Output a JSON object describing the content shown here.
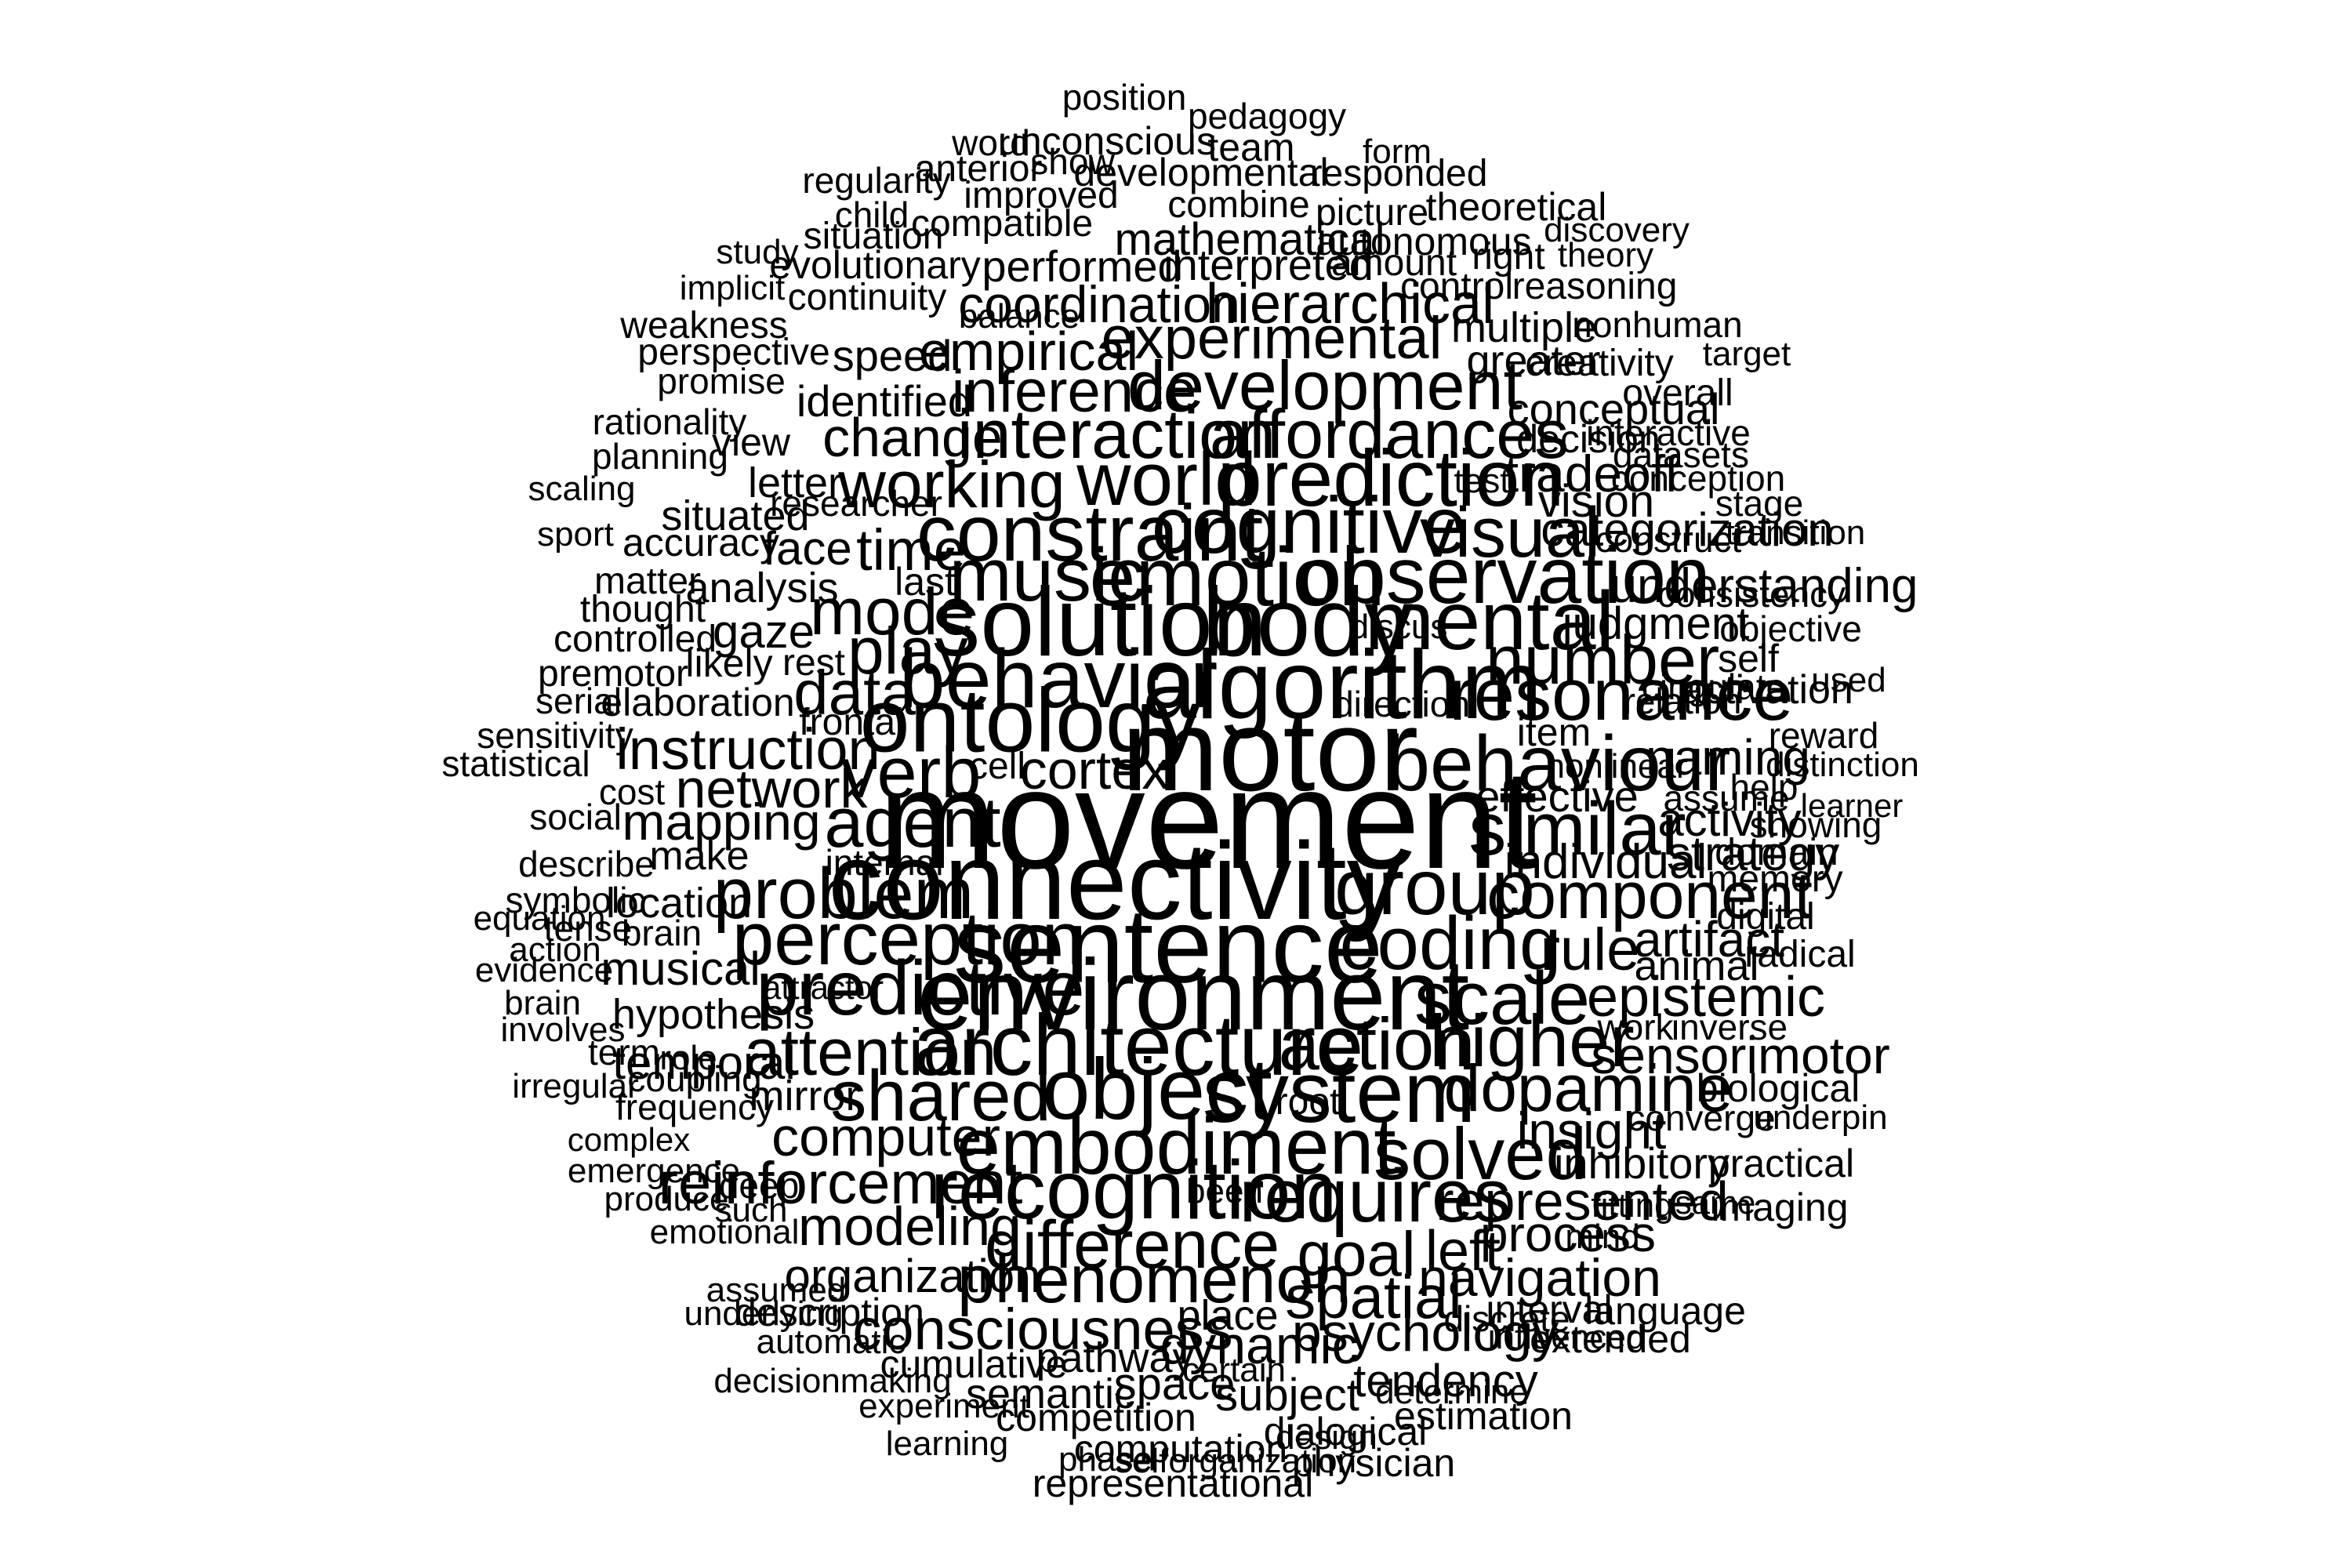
{
  "words": [
    {
      "text": "movement",
      "size": 180
    },
    {
      "text": "motor",
      "size": 148
    },
    {
      "text": "connectivity",
      "size": 140
    },
    {
      "text": "sentence",
      "size": 135
    },
    {
      "text": "environment",
      "size": 128
    },
    {
      "text": "solution",
      "size": 124
    },
    {
      "text": "body",
      "size": 124
    },
    {
      "text": "algorithm",
      "size": 124
    },
    {
      "text": "ontology",
      "size": 115
    },
    {
      "text": "architecture",
      "size": 110
    },
    {
      "text": "object",
      "size": 110
    },
    {
      "text": "system",
      "size": 110
    },
    {
      "text": "mental",
      "size": 106
    },
    {
      "text": "emotion",
      "size": 106
    },
    {
      "text": "behavior",
      "size": 106
    },
    {
      "text": "recognition",
      "size": 106
    },
    {
      "text": "cognitive",
      "size": 102
    },
    {
      "text": "prediction",
      "size": 102
    },
    {
      "text": "observation",
      "size": 102
    },
    {
      "text": "constraint",
      "size": 102
    },
    {
      "text": "embodiment",
      "size": 102
    },
    {
      "text": "behaviour",
      "size": 100
    },
    {
      "text": "group",
      "size": 100
    },
    {
      "text": "predictive",
      "size": 98
    },
    {
      "text": "world",
      "size": 96
    },
    {
      "text": "music",
      "size": 96
    },
    {
      "text": "perception",
      "size": 96
    },
    {
      "text": "coding",
      "size": 96
    },
    {
      "text": "scale",
      "size": 96
    },
    {
      "text": "requires",
      "size": 96
    },
    {
      "text": "similar",
      "size": 96
    },
    {
      "text": "resonance",
      "size": 94
    },
    {
      "text": "higher",
      "size": 94
    },
    {
      "text": "action",
      "size": 94
    },
    {
      "text": "solved",
      "size": 94
    },
    {
      "text": "verb",
      "size": 92
    },
    {
      "text": "problem",
      "size": 92
    },
    {
      "text": "shared",
      "size": 92
    },
    {
      "text": "agent",
      "size": 90
    },
    {
      "text": "visual",
      "size": 90
    },
    {
      "text": "number",
      "size": 88
    },
    {
      "text": "affordances",
      "size": 88
    },
    {
      "text": "interaction",
      "size": 88
    },
    {
      "text": "development",
      "size": 88
    },
    {
      "text": "difference",
      "size": 86
    },
    {
      "text": "phenomenon",
      "size": 86
    },
    {
      "text": "working",
      "size": 84
    },
    {
      "text": "mode",
      "size": 84
    },
    {
      "text": "play",
      "size": 84
    },
    {
      "text": "component",
      "size": 84
    },
    {
      "text": "attention",
      "size": 84
    },
    {
      "text": "dopamine",
      "size": 84
    },
    {
      "text": "data",
      "size": 80
    },
    {
      "text": "goal",
      "size": 80
    },
    {
      "text": "spatial",
      "size": 78
    },
    {
      "text": "experimental",
      "size": 76
    },
    {
      "text": "inference",
      "size": 76
    },
    {
      "text": "rule",
      "size": 76
    },
    {
      "text": "reinforcement",
      "size": 76
    },
    {
      "text": "consciousness",
      "size": 74
    },
    {
      "text": "instruction",
      "size": 74
    },
    {
      "text": "time",
      "size": 74
    },
    {
      "text": "hierarchical",
      "size": 72
    },
    {
      "text": "epistemic",
      "size": 72
    },
    {
      "text": "left",
      "size": 72
    },
    {
      "text": "empirical",
      "size": 70
    },
    {
      "text": "change",
      "size": 70
    },
    {
      "text": "network",
      "size": 70
    },
    {
      "text": "computer",
      "size": 70
    },
    {
      "text": "modeling",
      "size": 70
    },
    {
      "text": "represented",
      "size": 70
    },
    {
      "text": "cortex",
      "size": 70
    },
    {
      "text": "navigation",
      "size": 68
    },
    {
      "text": "psychology",
      "size": 68
    },
    {
      "text": "dynamic",
      "size": 68
    },
    {
      "text": "tradeoff",
      "size": 66
    },
    {
      "text": "mapping",
      "size": 66
    },
    {
      "text": "sensorimotor",
      "size": 66
    },
    {
      "text": "insight",
      "size": 66
    },
    {
      "text": "coordination",
      "size": 66
    },
    {
      "text": "artifact",
      "size": 64
    },
    {
      "text": "process",
      "size": 64
    },
    {
      "text": "naming",
      "size": 64
    },
    {
      "text": "strategy",
      "size": 62
    },
    {
      "text": "understanding",
      "size": 62
    },
    {
      "text": "individual",
      "size": 62
    },
    {
      "text": "activity",
      "size": 60
    },
    {
      "text": "categorization",
      "size": 60
    },
    {
      "text": "musical",
      "size": 60
    },
    {
      "text": "temporal",
      "size": 60
    },
    {
      "text": "organization",
      "size": 60
    },
    {
      "text": "gaze",
      "size": 60
    },
    {
      "text": "face",
      "size": 60
    },
    {
      "text": "mathematical",
      "size": 58
    },
    {
      "text": "vision",
      "size": 58
    },
    {
      "text": "judgment",
      "size": 58
    },
    {
      "text": "subject",
      "size": 58
    },
    {
      "text": "space",
      "size": 58
    },
    {
      "text": "tendency",
      "size": 58
    },
    {
      "text": "performed",
      "size": 56
    },
    {
      "text": "interpreted",
      "size": 56
    },
    {
      "text": "conceptual",
      "size": 56
    },
    {
      "text": "identified",
      "size": 56
    },
    {
      "text": "speed",
      "size": 56
    },
    {
      "text": "effective",
      "size": 56
    },
    {
      "text": "inhibitory",
      "size": 56
    },
    {
      "text": "analysis",
      "size": 54
    },
    {
      "text": "pathway",
      "size": 54
    },
    {
      "text": "semantic",
      "size": 54
    },
    {
      "text": "location",
      "size": 54
    },
    {
      "text": "hypothesis",
      "size": 54
    },
    {
      "text": "mirror",
      "size": 54
    },
    {
      "text": "letter",
      "size": 54
    },
    {
      "text": "place",
      "size": 54
    },
    {
      "text": "greater",
      "size": 54
    },
    {
      "text": "multiple",
      "size": 54
    },
    {
      "text": "situated",
      "size": 54
    },
    {
      "text": "animal",
      "size": 54
    },
    {
      "text": "activation",
      "size": 52
    },
    {
      "text": "make",
      "size": 52
    },
    {
      "text": "imaging",
      "size": 50
    },
    {
      "text": "practical",
      "size": 50
    },
    {
      "text": "self",
      "size": 50
    },
    {
      "text": "item",
      "size": 50
    },
    {
      "text": "decision",
      "size": 50
    },
    {
      "text": "estimation",
      "size": 50
    },
    {
      "text": "view",
      "size": 50
    },
    {
      "text": "elaboration",
      "size": 50
    },
    {
      "text": "cumulative",
      "size": 50
    },
    {
      "text": "description",
      "size": 50
    },
    {
      "text": "computation",
      "size": 50
    },
    {
      "text": "representational",
      "size": 50
    },
    {
      "text": "biological",
      "size": 50
    },
    {
      "text": "interval",
      "size": 50
    },
    {
      "text": "language",
      "size": 50
    },
    {
      "text": "extended",
      "size": 50
    },
    {
      "text": "dialogical",
      "size": 50
    },
    {
      "text": "physician",
      "size": 50
    },
    {
      "text": "competition",
      "size": 50
    },
    {
      "text": "accuracy",
      "size": 50
    },
    {
      "text": "last",
      "size": 50
    },
    {
      "text": "likely",
      "size": 50
    },
    {
      "text": "rest",
      "size": 48
    },
    {
      "text": "controlled",
      "size": 48
    },
    {
      "text": "thought",
      "size": 48
    },
    {
      "text": "matter",
      "size": 48
    },
    {
      "text": "premotor",
      "size": 48
    },
    {
      "text": "frontal",
      "size": 48
    },
    {
      "text": "cell",
      "size": 48
    },
    {
      "text": "internal",
      "size": 46
    },
    {
      "text": "cost",
      "size": 46
    },
    {
      "text": "social",
      "size": 46
    },
    {
      "text": "describe",
      "size": 46
    },
    {
      "text": "symbolic",
      "size": 46
    },
    {
      "text": "tense",
      "size": 46
    },
    {
      "text": "brain",
      "size": 46
    },
    {
      "text": "work",
      "size": 46
    },
    {
      "text": "inverse",
      "size": 46
    },
    {
      "text": "converge",
      "size": 46
    },
    {
      "text": "underpin",
      "size": 44
    },
    {
      "text": "memory",
      "size": 48
    },
    {
      "text": "domain",
      "size": 48
    },
    {
      "text": "digital",
      "size": 48
    },
    {
      "text": "radical",
      "size": 48
    },
    {
      "text": "showing",
      "size": 46
    },
    {
      "text": "help",
      "size": 46
    },
    {
      "text": "assume",
      "size": 46
    },
    {
      "text": "cingulate",
      "size": 46
    },
    {
      "text": "relation",
      "size": 46
    },
    {
      "text": "direction",
      "size": 46
    },
    {
      "text": "discus",
      "size": 44
    },
    {
      "text": "consistency",
      "size": 46
    },
    {
      "text": "objective",
      "size": 46
    },
    {
      "text": "used",
      "size": 44
    },
    {
      "text": "reward",
      "size": 46
    },
    {
      "text": "distinction",
      "size": 44
    },
    {
      "text": "learner",
      "size": 42
    },
    {
      "text": "nonlinear",
      "size": 44
    },
    {
      "text": "construct",
      "size": 46
    },
    {
      "text": "transition",
      "size": 44
    },
    {
      "text": "stage",
      "size": 46
    },
    {
      "text": "conception",
      "size": 46
    },
    {
      "text": "datasets",
      "size": 46
    },
    {
      "text": "interactive",
      "size": 46
    },
    {
      "text": "test",
      "size": 44
    },
    {
      "text": "overall",
      "size": 48
    },
    {
      "text": "target",
      "size": 44
    },
    {
      "text": "creativity",
      "size": 48
    },
    {
      "text": "nonhuman",
      "size": 46
    },
    {
      "text": "reasoning",
      "size": 48
    },
    {
      "text": "theory",
      "size": 44
    },
    {
      "text": "discovery",
      "size": 44
    },
    {
      "text": "right",
      "size": 48
    },
    {
      "text": "amount",
      "size": 48
    },
    {
      "text": "control",
      "size": 48
    },
    {
      "text": "theoretical",
      "size": 50
    },
    {
      "text": "autonomous",
      "size": 50
    },
    {
      "text": "picture",
      "size": 48
    },
    {
      "text": "responded",
      "size": 48
    },
    {
      "text": "form",
      "size": 44
    },
    {
      "text": "combine",
      "size": 48
    },
    {
      "text": "developmental",
      "size": 50
    },
    {
      "text": "team",
      "size": 50
    },
    {
      "text": "pedagogy",
      "size": 46
    },
    {
      "text": "position",
      "size": 46
    },
    {
      "text": "unconscious",
      "size": 50
    },
    {
      "text": "word",
      "size": 46
    },
    {
      "text": "show",
      "size": 46
    },
    {
      "text": "anterior",
      "size": 48
    },
    {
      "text": "improved",
      "size": 48
    },
    {
      "text": "regularity",
      "size": 46
    },
    {
      "text": "child",
      "size": 46
    },
    {
      "text": "compatible",
      "size": 48
    },
    {
      "text": "situation",
      "size": 48
    },
    {
      "text": "evolutionary",
      "size": 50
    },
    {
      "text": "study",
      "size": 44
    },
    {
      "text": "implicit",
      "size": 44
    },
    {
      "text": "continuity",
      "size": 48
    },
    {
      "text": "balance",
      "size": 44
    },
    {
      "text": "weakness",
      "size": 48
    },
    {
      "text": "perspective",
      "size": 48
    },
    {
      "text": "promise",
      "size": 46
    },
    {
      "text": "rationality",
      "size": 46
    },
    {
      "text": "planning",
      "size": 46
    },
    {
      "text": "researcher",
      "size": 46
    },
    {
      "text": "scaling",
      "size": 44
    },
    {
      "text": "sport",
      "size": 44
    },
    {
      "text": "serial",
      "size": 46
    },
    {
      "text": "sensitivity",
      "size": 46
    },
    {
      "text": "statistical",
      "size": 46
    },
    {
      "text": "equation",
      "size": 44
    },
    {
      "text": "action",
      "size": 44
    },
    {
      "text": "evidence",
      "size": 44
    },
    {
      "text": "attractor",
      "size": 42
    },
    {
      "text": "brain",
      "size": 44
    },
    {
      "text": "involves",
      "size": 44
    },
    {
      "text": "term",
      "size": 46
    },
    {
      "text": "role",
      "size": 44
    },
    {
      "text": "coupling",
      "size": 46
    },
    {
      "text": "irregular",
      "size": 44
    },
    {
      "text": "frequency",
      "size": 46
    },
    {
      "text": "complex",
      "size": 42
    },
    {
      "text": "root",
      "size": 48
    },
    {
      "text": "emergence",
      "size": 44
    },
    {
      "text": "deep",
      "size": 46
    },
    {
      "text": "produce",
      "size": 44
    },
    {
      "text": "such",
      "size": 44
    },
    {
      "text": "been",
      "size": 44
    },
    {
      "text": "emotional",
      "size": 44
    },
    {
      "text": "fitting",
      "size": 44
    },
    {
      "text": "same",
      "size": 42
    },
    {
      "text": "mind",
      "size": 44
    },
    {
      "text": "assumed",
      "size": 44
    },
    {
      "text": "underlying",
      "size": 44
    },
    {
      "text": "discrete",
      "size": 46
    },
    {
      "text": "influenced",
      "size": 44
    },
    {
      "text": "automatic",
      "size": 44
    },
    {
      "text": "decisionmaking",
      "size": 44
    },
    {
      "text": "certain",
      "size": 44
    },
    {
      "text": "determine",
      "size": 44
    },
    {
      "text": "experiment",
      "size": 44
    },
    {
      "text": "design",
      "size": 44
    },
    {
      "text": "learning",
      "size": 44
    },
    {
      "text": "phase",
      "size": 44
    },
    {
      "text": "selforganization",
      "size": 44
    }
  ]
}
